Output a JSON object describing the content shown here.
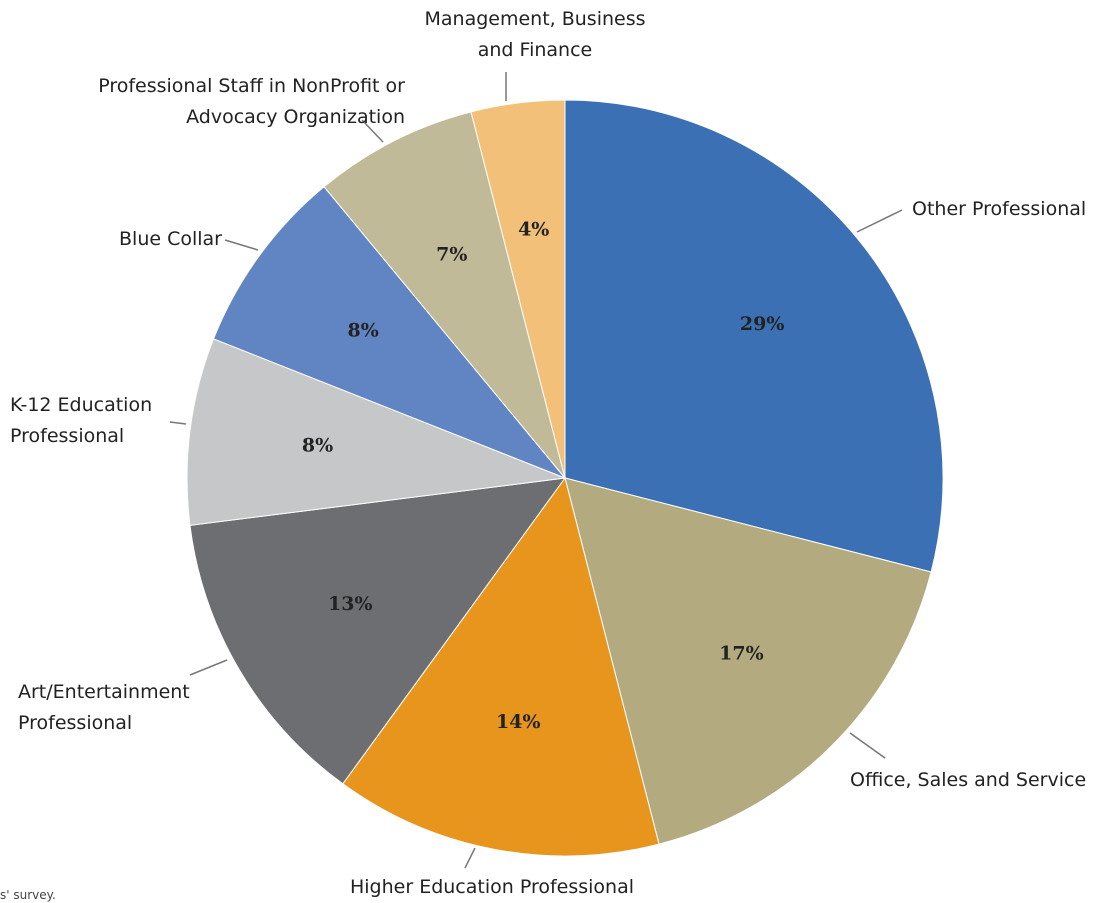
{
  "chart_data": {
    "type": "pie",
    "categories": [
      "Other Professional",
      "Office, Sales and Service",
      "Higher Education Professional",
      "Art/Entertainment Professional",
      "K-12 Education Professional",
      "Blue Collar",
      "Professional Staff in NonProfit or Advocacy Organization",
      "Management, Business and Finance"
    ],
    "values": [
      29,
      17,
      14,
      13,
      8,
      8,
      7,
      4
    ],
    "value_labels": [
      "29%",
      "17%",
      "14%",
      "13%",
      "8%",
      "8%",
      "7%",
      "4%"
    ],
    "colors": [
      "#3b70b5",
      "#b3aa80",
      "#e8951e",
      "#6d6e72",
      "#c6c7c9",
      "#6184c2",
      "#c0ba98",
      "#f2c078"
    ],
    "note": "s' survey."
  }
}
